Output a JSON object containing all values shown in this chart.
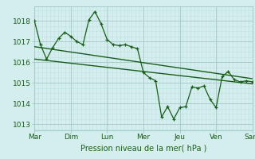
{
  "xlabel": "Pression niveau de la mer( hPa )",
  "bg_color": "#d4eeee",
  "grid_major_color": "#aacccc",
  "grid_minor_color": "#c0e0e0",
  "line_color": "#1a5c1a",
  "ylim": [
    1012.7,
    1018.7
  ],
  "yticks": [
    1013,
    1014,
    1015,
    1016,
    1017,
    1018
  ],
  "xlabels": [
    "Mar",
    "Dim",
    "Lun",
    "Mer",
    "Jeu",
    "Ven",
    "Sam"
  ],
  "main_x": [
    0,
    0.33,
    0.67,
    1.0,
    1.33,
    1.67,
    2.0,
    2.33,
    2.67,
    3.0,
    3.33,
    3.67,
    4.0,
    4.33,
    4.67,
    5.0,
    5.33,
    5.67,
    6.0,
    6.33,
    6.67,
    7.0,
    7.33,
    7.67,
    8.0,
    8.33,
    8.67,
    9.0,
    9.33,
    9.67,
    10.0,
    10.33,
    10.67,
    11.0,
    11.33,
    11.67,
    12.0
  ],
  "main_y": [
    1018.0,
    1016.85,
    1016.15,
    1016.7,
    1017.15,
    1017.45,
    1017.25,
    1017.0,
    1016.85,
    1018.05,
    1018.45,
    1017.85,
    1017.1,
    1016.85,
    1016.8,
    1016.85,
    1016.75,
    1016.65,
    1015.5,
    1015.25,
    1015.1,
    1013.35,
    1013.85,
    1013.25,
    1013.8,
    1013.85,
    1014.8,
    1014.75,
    1014.85,
    1014.2,
    1013.8,
    1015.3,
    1015.55,
    1015.15,
    1015.05,
    1015.1,
    1015.05
  ],
  "trend1_x": [
    0,
    12.0
  ],
  "trend1_y": [
    1016.75,
    1015.2
  ],
  "trend2_x": [
    0,
    12.0
  ],
  "trend2_y": [
    1016.15,
    1014.95
  ],
  "xtick_positions": [
    0,
    2.0,
    4.0,
    6.0,
    8.0,
    10.0,
    12.0
  ],
  "xlim": [
    0,
    12.0
  ],
  "figsize": [
    3.2,
    2.0
  ],
  "dpi": 100
}
